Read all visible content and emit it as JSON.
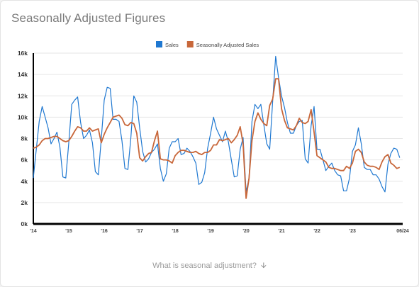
{
  "card": {
    "title": "Seasonally Adjusted Figures",
    "footer_link": "What is seasonal adjustment?",
    "footer_icon": "arrow-down-icon"
  },
  "chart_data": {
    "type": "line",
    "title": "",
    "xlabel": "",
    "ylabel": "",
    "ylim": [
      0,
      16000
    ],
    "yticks": [
      0,
      2000,
      4000,
      6000,
      8000,
      10000,
      12000,
      14000,
      16000
    ],
    "ytick_labels": [
      "0k",
      "2k",
      "4k",
      "6k",
      "8k",
      "10k",
      "12k",
      "14k",
      "16k"
    ],
    "xlim": [
      0,
      125
    ],
    "xticks": [
      0,
      12,
      24,
      36,
      48,
      60,
      72,
      84,
      96,
      108,
      125
    ],
    "xtick_labels": [
      "'14",
      "'15",
      "'16",
      "'17",
      "'18",
      "'19",
      "'20",
      "'21",
      "'22",
      "'23",
      "06/24"
    ],
    "grid": true,
    "legend": "top-center",
    "series": [
      {
        "name": "Sales",
        "color": "#1f78d1",
        "values": [
          4300,
          7000,
          9600,
          11000,
          10000,
          9000,
          7500,
          8000,
          8600,
          7200,
          4400,
          4300,
          7600,
          11200,
          11600,
          11900,
          9500,
          8000,
          8300,
          8800,
          7600,
          4900,
          4600,
          8000,
          11600,
          12800,
          12700,
          9800,
          9800,
          9600,
          7800,
          5200,
          5100,
          8000,
          12000,
          11400,
          9000,
          6800,
          5800,
          6100,
          6700,
          7000,
          7500,
          5200,
          4000,
          4700,
          7100,
          7700,
          7700,
          8000,
          6500,
          6600,
          7100,
          6800,
          6300,
          5700,
          3700,
          3900,
          4800,
          7100,
          8500,
          10000,
          8900,
          8300,
          7700,
          8700,
          7700,
          6000,
          4400,
          4500,
          7000,
          8100,
          3000,
          4300,
          9600,
          11200,
          10800,
          11200,
          9300,
          7500,
          7000,
          11500,
          15700,
          13700,
          12000,
          10900,
          9500,
          8500,
          8500,
          9200,
          9600,
          9700,
          6100,
          5700,
          9200,
          11000,
          7000,
          7000,
          6000,
          5000,
          5400,
          5700,
          5000,
          4600,
          4500,
          3100,
          3100,
          4300,
          6800,
          7400,
          9000,
          7500,
          5300,
          5100,
          5100,
          4600,
          4600,
          4200,
          3500,
          3000,
          5600,
          6600,
          7100,
          7000,
          6200
        ]
      },
      {
        "name": "Seasonally Adjusted Sales",
        "color": "#c8673a",
        "values": [
          7100,
          7200,
          7400,
          7800,
          8000,
          8000,
          8100,
          8200,
          8200,
          8000,
          7800,
          7700,
          7800,
          8200,
          8700,
          9100,
          9000,
          8700,
          8700,
          9000,
          8700,
          8800,
          8900,
          7600,
          8400,
          9000,
          9500,
          10000,
          10100,
          10200,
          9900,
          9300,
          9200,
          9500,
          9400,
          8500,
          6200,
          5900,
          6300,
          6600,
          6700,
          7800,
          8700,
          6100,
          6000,
          6000,
          5900,
          5700,
          6400,
          6700,
          6900,
          6900,
          6800,
          6700,
          6700,
          6800,
          6600,
          6500,
          6700,
          6700,
          6900,
          7400,
          7400,
          7900,
          7800,
          7900,
          8000,
          7600,
          7900,
          8300,
          9100,
          7500,
          2400,
          4300,
          7800,
          9600,
          10400,
          9800,
          9400,
          9200,
          11100,
          11700,
          13600,
          13600,
          10800,
          9700,
          9000,
          8900,
          8800,
          9200,
          9900,
          9500,
          9400,
          9600,
          10700,
          8600,
          6400,
          6200,
          6000,
          5800,
          5300,
          5200,
          5200,
          5100,
          5000,
          5000,
          5400,
          5200,
          5700,
          6800,
          7000,
          6700,
          5800,
          5500,
          5400,
          5400,
          5300,
          5100,
          5800,
          6300,
          6500,
          5700,
          5500,
          5200,
          5300
        ]
      }
    ]
  }
}
